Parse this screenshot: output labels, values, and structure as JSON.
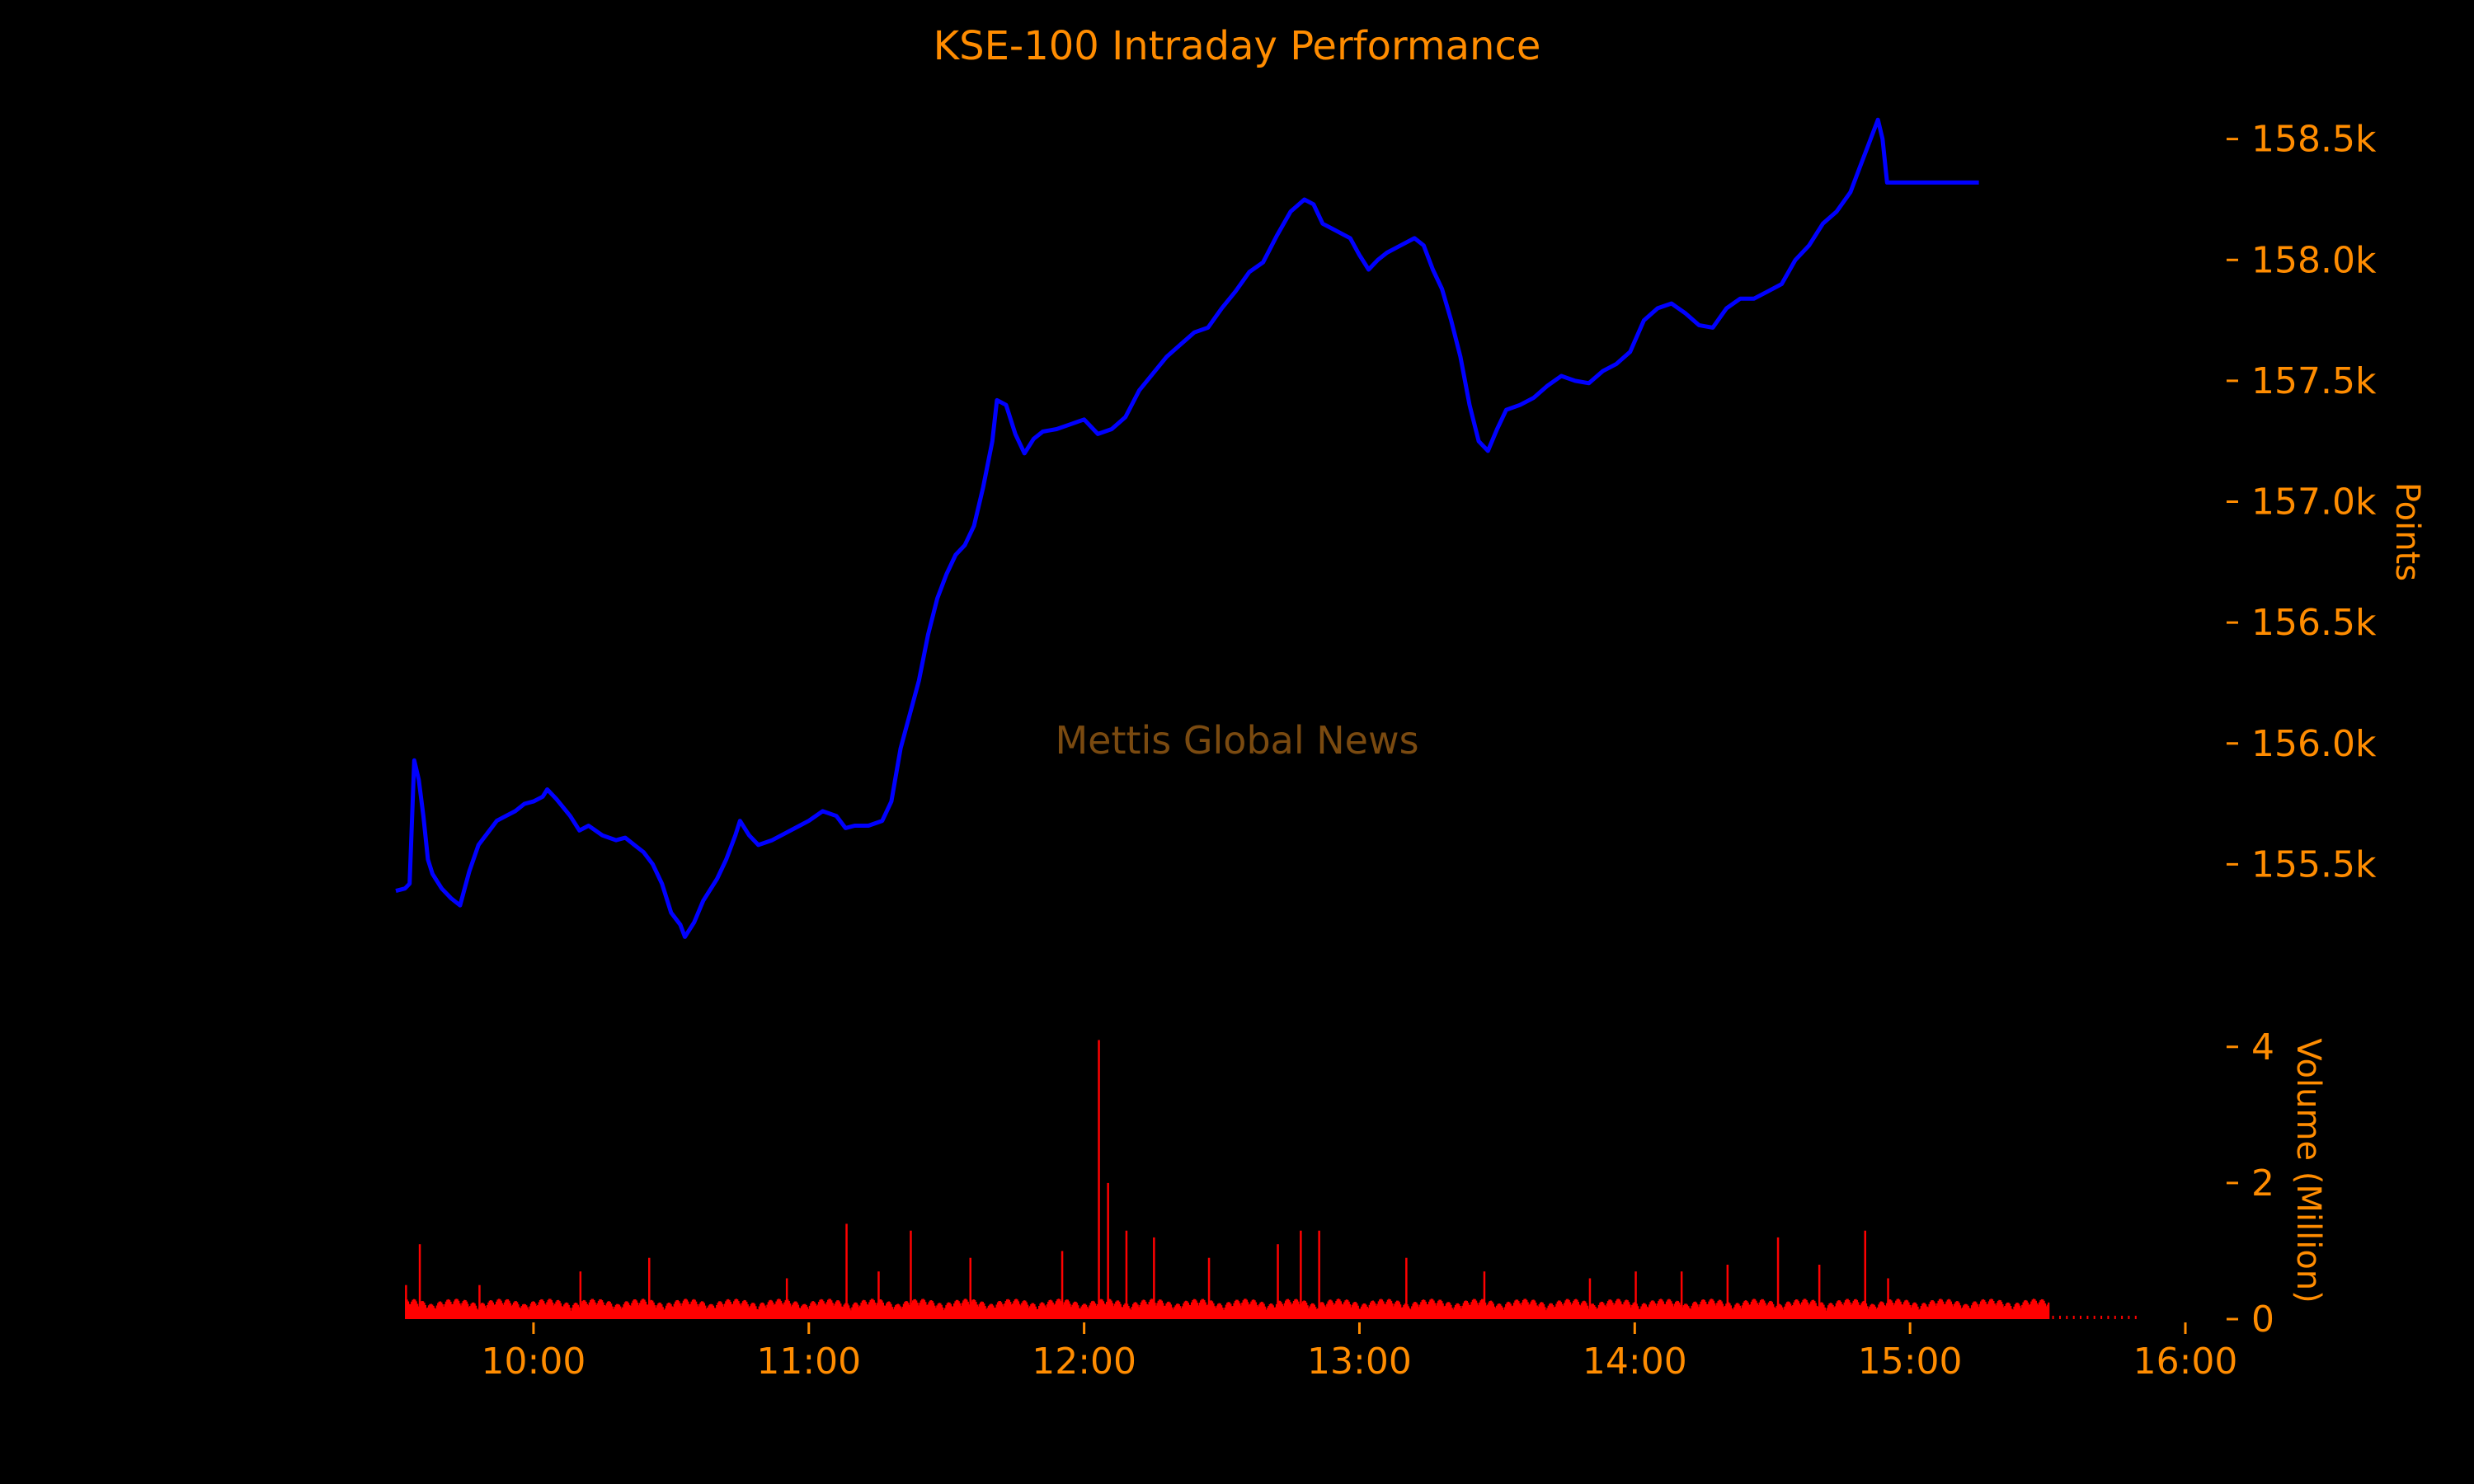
{
  "chart_data": {
    "type": "line",
    "title": "KSE-100 Intraday Performance",
    "watermark": "Mettis Global News",
    "colors": {
      "text": "#ff8c00",
      "price_line": "#0000ff",
      "volume_bars": "#ff0000",
      "background": "#000000",
      "watermark": "#7a4a10"
    },
    "x_axis": {
      "range": [
        "09:30",
        "16:00"
      ],
      "ticks": [
        "10:00",
        "11:00",
        "12:00",
        "13:00",
        "14:00",
        "15:00",
        "16:00"
      ]
    },
    "price_axis": {
      "label": "Points",
      "ylim": [
        155000,
        158700
      ],
      "tick_values": [
        155500,
        156000,
        156500,
        157000,
        157500,
        158000,
        158500
      ],
      "tick_labels": [
        "155.5k",
        "156.0k",
        "156.5k",
        "157.0k",
        "157.5k",
        "158.0k",
        "158.5k"
      ]
    },
    "volume_axis": {
      "label": "Volume (Million)",
      "ylim": [
        0,
        4.3
      ],
      "tick_values": [
        0,
        2,
        4
      ],
      "tick_labels": [
        "0",
        "2",
        "4"
      ]
    },
    "series": [
      {
        "kind": "price",
        "points": [
          [
            "09:30",
            155390
          ],
          [
            "09:32",
            155400
          ],
          [
            "09:33",
            155420
          ],
          [
            "09:34",
            155930
          ],
          [
            "09:35",
            155850
          ],
          [
            "09:36",
            155700
          ],
          [
            "09:37",
            155520
          ],
          [
            "09:38",
            155460
          ],
          [
            "09:40",
            155400
          ],
          [
            "09:42",
            155360
          ],
          [
            "09:44",
            155330
          ],
          [
            "09:46",
            155470
          ],
          [
            "09:48",
            155580
          ],
          [
            "09:50",
            155630
          ],
          [
            "09:52",
            155680
          ],
          [
            "09:54",
            155700
          ],
          [
            "09:56",
            155720
          ],
          [
            "09:58",
            155750
          ],
          [
            "10:00",
            155760
          ],
          [
            "10:02",
            155780
          ],
          [
            "10:03",
            155810
          ],
          [
            "10:05",
            155770
          ],
          [
            "10:08",
            155700
          ],
          [
            "10:10",
            155640
          ],
          [
            "10:12",
            155660
          ],
          [
            "10:15",
            155620
          ],
          [
            "10:18",
            155600
          ],
          [
            "10:20",
            155610
          ],
          [
            "10:22",
            155580
          ],
          [
            "10:24",
            155550
          ],
          [
            "10:26",
            155500
          ],
          [
            "10:28",
            155420
          ],
          [
            "10:30",
            155300
          ],
          [
            "10:32",
            155250
          ],
          [
            "10:33",
            155200
          ],
          [
            "10:35",
            155260
          ],
          [
            "10:37",
            155350
          ],
          [
            "10:40",
            155440
          ],
          [
            "10:42",
            155520
          ],
          [
            "10:44",
            155620
          ],
          [
            "10:45",
            155680
          ],
          [
            "10:47",
            155620
          ],
          [
            "10:49",
            155580
          ],
          [
            "10:52",
            155600
          ],
          [
            "10:55",
            155630
          ],
          [
            "10:58",
            155660
          ],
          [
            "11:00",
            155680
          ],
          [
            "11:03",
            155720
          ],
          [
            "11:06",
            155700
          ],
          [
            "11:08",
            155650
          ],
          [
            "11:10",
            155660
          ],
          [
            "11:13",
            155660
          ],
          [
            "11:16",
            155680
          ],
          [
            "11:18",
            155760
          ],
          [
            "11:20",
            155980
          ],
          [
            "11:22",
            156120
          ],
          [
            "11:24",
            156260
          ],
          [
            "11:26",
            156450
          ],
          [
            "11:28",
            156600
          ],
          [
            "11:30",
            156700
          ],
          [
            "11:32",
            156780
          ],
          [
            "11:34",
            156820
          ],
          [
            "11:36",
            156900
          ],
          [
            "11:38",
            157060
          ],
          [
            "11:40",
            157250
          ],
          [
            "11:41",
            157420
          ],
          [
            "11:43",
            157400
          ],
          [
            "11:45",
            157280
          ],
          [
            "11:47",
            157200
          ],
          [
            "11:49",
            157260
          ],
          [
            "11:51",
            157290
          ],
          [
            "11:54",
            157300
          ],
          [
            "11:57",
            157320
          ],
          [
            "12:00",
            157340
          ],
          [
            "12:03",
            157280
          ],
          [
            "12:06",
            157300
          ],
          [
            "12:09",
            157350
          ],
          [
            "12:12",
            157460
          ],
          [
            "12:15",
            157530
          ],
          [
            "12:18",
            157600
          ],
          [
            "12:21",
            157650
          ],
          [
            "12:24",
            157700
          ],
          [
            "12:27",
            157720
          ],
          [
            "12:30",
            157800
          ],
          [
            "12:33",
            157870
          ],
          [
            "12:36",
            157950
          ],
          [
            "12:39",
            157990
          ],
          [
            "12:42",
            158100
          ],
          [
            "12:45",
            158200
          ],
          [
            "12:48",
            158250
          ],
          [
            "12:50",
            158230
          ],
          [
            "12:52",
            158150
          ],
          [
            "12:55",
            158120
          ],
          [
            "12:58",
            158090
          ],
          [
            "13:00",
            158020
          ],
          [
            "13:02",
            157960
          ],
          [
            "13:04",
            158000
          ],
          [
            "13:06",
            158030
          ],
          [
            "13:08",
            158050
          ],
          [
            "13:10",
            158070
          ],
          [
            "13:12",
            158090
          ],
          [
            "13:14",
            158060
          ],
          [
            "13:16",
            157960
          ],
          [
            "13:18",
            157880
          ],
          [
            "13:20",
            157750
          ],
          [
            "13:22",
            157600
          ],
          [
            "13:24",
            157400
          ],
          [
            "13:26",
            157250
          ],
          [
            "13:28",
            157210
          ],
          [
            "13:30",
            157300
          ],
          [
            "13:32",
            157380
          ],
          [
            "13:35",
            157400
          ],
          [
            "13:38",
            157430
          ],
          [
            "13:41",
            157480
          ],
          [
            "13:44",
            157520
          ],
          [
            "13:47",
            157500
          ],
          [
            "13:50",
            157490
          ],
          [
            "13:53",
            157540
          ],
          [
            "13:56",
            157570
          ],
          [
            "13:59",
            157620
          ],
          [
            "14:02",
            157750
          ],
          [
            "14:05",
            157800
          ],
          [
            "14:08",
            157820
          ],
          [
            "14:11",
            157780
          ],
          [
            "14:14",
            157730
          ],
          [
            "14:17",
            157720
          ],
          [
            "14:20",
            157800
          ],
          [
            "14:23",
            157840
          ],
          [
            "14:26",
            157840
          ],
          [
            "14:29",
            157870
          ],
          [
            "14:32",
            157900
          ],
          [
            "14:35",
            158000
          ],
          [
            "14:38",
            158060
          ],
          [
            "14:41",
            158150
          ],
          [
            "14:44",
            158200
          ],
          [
            "14:47",
            158280
          ],
          [
            "14:49",
            158380
          ],
          [
            "14:51",
            158480
          ],
          [
            "14:53",
            158580
          ],
          [
            "14:54",
            158500
          ],
          [
            "14:55",
            158320
          ],
          [
            "15:00",
            158320
          ],
          [
            "15:10",
            158320
          ],
          [
            "15:15",
            158320
          ]
        ]
      },
      {
        "kind": "volume",
        "spikes": [
          [
            "09:32",
            0.5
          ],
          [
            "09:35",
            1.1
          ],
          [
            "09:48",
            0.5
          ],
          [
            "10:10",
            0.7
          ],
          [
            "10:25",
            0.9
          ],
          [
            "10:55",
            0.6
          ],
          [
            "11:08",
            1.4
          ],
          [
            "11:15",
            0.7
          ],
          [
            "11:22",
            1.3
          ],
          [
            "11:35",
            0.9
          ],
          [
            "11:55",
            1.0
          ],
          [
            "12:03",
            4.1
          ],
          [
            "12:05",
            2.0
          ],
          [
            "12:09",
            1.3
          ],
          [
            "12:15",
            1.2
          ],
          [
            "12:27",
            0.9
          ],
          [
            "12:42",
            1.1
          ],
          [
            "12:47",
            1.3
          ],
          [
            "12:51",
            1.3
          ],
          [
            "13:10",
            0.9
          ],
          [
            "13:27",
            0.7
          ],
          [
            "13:50",
            0.6
          ],
          [
            "14:00",
            0.7
          ],
          [
            "14:10",
            0.7
          ],
          [
            "14:20",
            0.8
          ],
          [
            "14:31",
            1.2
          ],
          [
            "14:40",
            0.8
          ],
          [
            "14:50",
            1.3
          ],
          [
            "14:55",
            0.6
          ]
        ]
      }
    ]
  }
}
